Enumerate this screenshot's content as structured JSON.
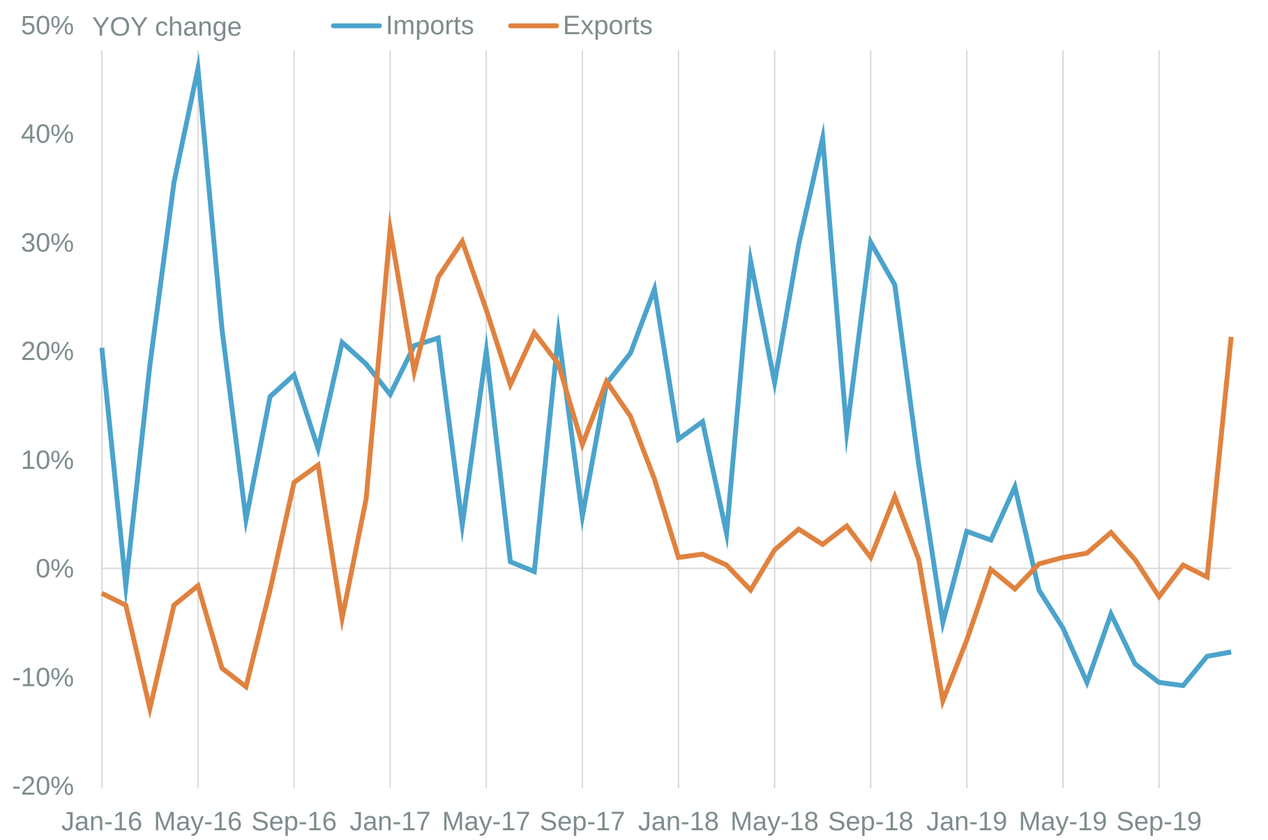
{
  "chart_data": {
    "type": "line",
    "title": "",
    "xlabel": "",
    "ylabel": "YOY change",
    "ylim": [
      -20,
      50
    ],
    "y_ticks": [
      -20,
      -10,
      0,
      10,
      20,
      30,
      40,
      50
    ],
    "y_tick_labels": [
      "-20%",
      "-10%",
      "0%",
      "10%",
      "20%",
      "30%",
      "40%",
      "50%"
    ],
    "x_tick_labels": [
      "Jan-16",
      "May-16",
      "Sep-16",
      "Jan-17",
      "May-17",
      "Sep-17",
      "Jan-18",
      "May-18",
      "Sep-18",
      "Jan-19",
      "May-19",
      "Sep-19"
    ],
    "x": [
      "Jan-16",
      "Feb-16",
      "Mar-16",
      "Apr-16",
      "May-16",
      "Jun-16",
      "Jul-16",
      "Aug-16",
      "Sep-16",
      "Oct-16",
      "Nov-16",
      "Dec-16",
      "Jan-17",
      "Feb-17",
      "Mar-17",
      "Apr-17",
      "May-17",
      "Jun-17",
      "Jul-17",
      "Aug-17",
      "Sep-17",
      "Oct-17",
      "Nov-17",
      "Dec-17",
      "Jan-18",
      "Feb-18",
      "Mar-18",
      "Apr-18",
      "May-18",
      "Jun-18",
      "Jul-18",
      "Aug-18",
      "Sep-18",
      "Oct-18",
      "Nov-18",
      "Dec-18",
      "Jan-19",
      "Feb-19",
      "Mar-19",
      "Apr-19",
      "May-19",
      "Jun-19",
      "Jul-19",
      "Aug-19",
      "Sep-19",
      "Oct-19",
      "Nov-19",
      "Dec-19"
    ],
    "grid": "vertical",
    "legend_position": "top",
    "series": [
      {
        "name": "Imports",
        "color": "#4ba3cc",
        "values": [
          20.3,
          -1.6,
          18.7,
          35.5,
          46.0,
          22.0,
          4.5,
          15.8,
          17.8,
          11.0,
          20.8,
          18.8,
          16.0,
          20.5,
          21.2,
          4.0,
          20.0,
          0.6,
          -0.3,
          21.6,
          4.8,
          17.0,
          19.8,
          25.7,
          11.9,
          13.5,
          3.2,
          28.3,
          17.1,
          29.8,
          39.6,
          12.6,
          30.0,
          26.1,
          9.5,
          -5.0,
          3.4,
          2.6,
          7.5,
          -2.0,
          -5.5,
          -10.5,
          -4.2,
          -8.8,
          -10.5,
          -10.8,
          -8.1,
          -7.7
        ]
      },
      {
        "name": "Exports",
        "color": "#e0823f",
        "values": [
          -2.3,
          -3.4,
          -12.9,
          -3.4,
          -1.6,
          -9.2,
          -10.9,
          -2.0,
          7.9,
          9.5,
          -4.6,
          6.4,
          31.2,
          18.1,
          26.8,
          30.1,
          23.8,
          16.9,
          21.7,
          18.8,
          11.4,
          17.2,
          14.0,
          8.2,
          1.0,
          1.3,
          0.3,
          -2.0,
          1.7,
          3.6,
          2.2,
          3.9,
          1.0,
          6.6,
          0.8,
          -12.2,
          -6.6,
          -0.1,
          -1.9,
          0.4,
          1.0,
          1.4,
          3.3,
          0.8,
          -2.6,
          0.3,
          -0.8,
          21.3
        ]
      }
    ]
  }
}
